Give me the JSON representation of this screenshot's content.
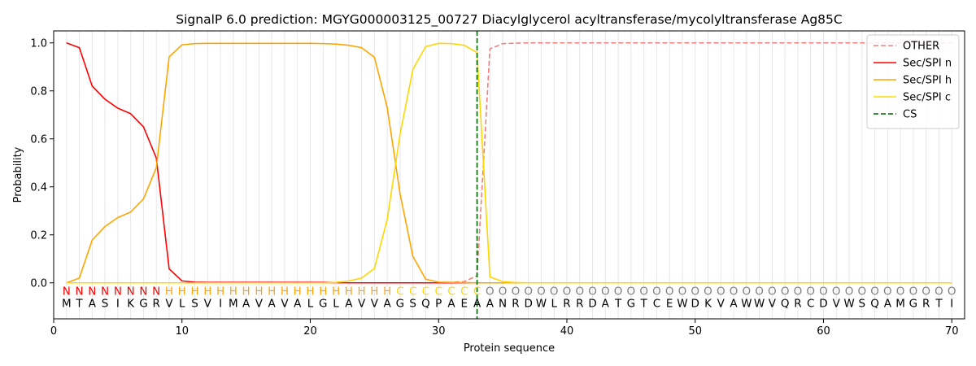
{
  "chart_data": {
    "type": "line",
    "title": "SignalP 6.0 prediction: MGYG000003125_00727 Diacylglycerol acyltransferase/mycolyltransferase Ag85C",
    "xlabel": "Protein sequence",
    "ylabel": "Probability",
    "xlim": [
      0,
      71
    ],
    "ylim": [
      -0.15,
      1.05
    ],
    "xticks": [
      0,
      10,
      20,
      30,
      40,
      50,
      60,
      70
    ],
    "yticks": [
      0.0,
      0.2,
      0.4,
      0.6,
      0.8,
      1.0
    ],
    "ytick_labels": [
      "0.0",
      "0.2",
      "0.4",
      "0.6",
      "0.8",
      "1.0"
    ],
    "legend_position": "upper right",
    "sequence": [
      "M",
      "T",
      "A",
      "S",
      "I",
      "K",
      "G",
      "R",
      "V",
      "L",
      "S",
      "V",
      "I",
      "M",
      "A",
      "V",
      "A",
      "V",
      "A",
      "L",
      "G",
      "L",
      "A",
      "V",
      "V",
      "A",
      "G",
      "S",
      "Q",
      "P",
      "A",
      "E",
      "A",
      "A",
      "N",
      "R",
      "D",
      "W",
      "L",
      "R",
      "R",
      "D",
      "A",
      "T",
      "G",
      "T",
      "C",
      "E",
      "W",
      "D",
      "K",
      "V",
      "A",
      "W",
      "W",
      "V",
      "Q",
      "R",
      "C",
      "D",
      "V",
      "W",
      "S",
      "Q",
      "A",
      "M",
      "G",
      "R",
      "T",
      "I"
    ],
    "states": [
      "N",
      "N",
      "N",
      "N",
      "N",
      "N",
      "N",
      "N",
      "H",
      "H",
      "H",
      "H",
      "H",
      "H",
      "H",
      "H",
      "H",
      "H",
      "H",
      "H",
      "H",
      "H",
      "H",
      "H",
      "H",
      "H",
      "C",
      "C",
      "C",
      "C",
      "C",
      "C",
      "C",
      "O",
      "O",
      "O",
      "O",
      "O",
      "O",
      "O",
      "O",
      "O",
      "O",
      "O",
      "O",
      "O",
      "O",
      "O",
      "O",
      "O",
      "O",
      "O",
      "O",
      "O",
      "O",
      "O",
      "O",
      "O",
      "O",
      "O",
      "O",
      "O",
      "O",
      "O",
      "O",
      "O",
      "O",
      "O",
      "O",
      "O"
    ],
    "state_colors": {
      "N": "#ff0000",
      "H": "#ffa500",
      "C": "#ffd700",
      "O": "#808080"
    },
    "cs_position": 33,
    "series": [
      {
        "name": "OTHER",
        "color": "#f08080",
        "dash": "dashed",
        "values": [
          0,
          0,
          0,
          0,
          0,
          0,
          0,
          0,
          0,
          0,
          0,
          0,
          0,
          0,
          0,
          0,
          0,
          0,
          0,
          0,
          0,
          0,
          0,
          0,
          0,
          0,
          0,
          0,
          0,
          0,
          0.002,
          0.005,
          0.03,
          0.975,
          0.997,
          0.999,
          1,
          1,
          1,
          1,
          1,
          1,
          1,
          1,
          1,
          1,
          1,
          1,
          1,
          1,
          1,
          1,
          1,
          1,
          1,
          1,
          1,
          1,
          1,
          1,
          1,
          1,
          1,
          1,
          1,
          1,
          1,
          1,
          1,
          1
        ]
      },
      {
        "name": "Sec/SPI n",
        "color": "#ff0000",
        "dash": "solid",
        "values": [
          1.0,
          0.98,
          0.82,
          0.765,
          0.728,
          0.705,
          0.65,
          0.52,
          0.058,
          0.008,
          0.003,
          0.002,
          0.002,
          0.002,
          0.002,
          0.002,
          0.002,
          0.002,
          0.002,
          0.002,
          0.002,
          0.001,
          0,
          0,
          0,
          0,
          0,
          0,
          0,
          0,
          0,
          0,
          0,
          0,
          0,
          0,
          0,
          0,
          0,
          0,
          0,
          0,
          0,
          0,
          0,
          0,
          0,
          0,
          0,
          0,
          0,
          0,
          0,
          0,
          0,
          0,
          0,
          0,
          0,
          0,
          0,
          0,
          0,
          0,
          0,
          0,
          0,
          0,
          0,
          0
        ]
      },
      {
        "name": "Sec/SPI h",
        "color": "#ffa500",
        "dash": "solid",
        "values": [
          0.0,
          0.02,
          0.178,
          0.235,
          0.272,
          0.295,
          0.35,
          0.48,
          0.942,
          0.992,
          0.997,
          0.998,
          0.998,
          0.998,
          0.998,
          0.998,
          0.998,
          0.998,
          0.998,
          0.998,
          0.997,
          0.995,
          0.99,
          0.98,
          0.94,
          0.73,
          0.37,
          0.11,
          0.015,
          0.003,
          0.002,
          0.001,
          0,
          0,
          0,
          0,
          0,
          0,
          0,
          0,
          0,
          0,
          0,
          0,
          0,
          0,
          0,
          0,
          0,
          0,
          0,
          0,
          0,
          0,
          0,
          0,
          0,
          0,
          0,
          0,
          0,
          0,
          0,
          0,
          0,
          0,
          0,
          0,
          0,
          0
        ]
      },
      {
        "name": "Sec/SPI c",
        "color": "#ffd700",
        "dash": "solid",
        "values": [
          0,
          0,
          0,
          0,
          0,
          0,
          0,
          0,
          0,
          0,
          0,
          0,
          0,
          0,
          0,
          0,
          0,
          0,
          0,
          0,
          0,
          0.002,
          0.008,
          0.02,
          0.06,
          0.265,
          0.62,
          0.89,
          0.985,
          0.998,
          0.997,
          0.99,
          0.96,
          0.025,
          0.005,
          0.001,
          0,
          0,
          0,
          0,
          0,
          0,
          0,
          0,
          0,
          0,
          0,
          0,
          0,
          0,
          0,
          0,
          0,
          0,
          0,
          0,
          0,
          0,
          0,
          0,
          0,
          0,
          0,
          0,
          0,
          0,
          0,
          0,
          0,
          0
        ]
      }
    ],
    "cs_legend": {
      "name": "CS",
      "color": "#006400",
      "dash": "dashed"
    }
  }
}
